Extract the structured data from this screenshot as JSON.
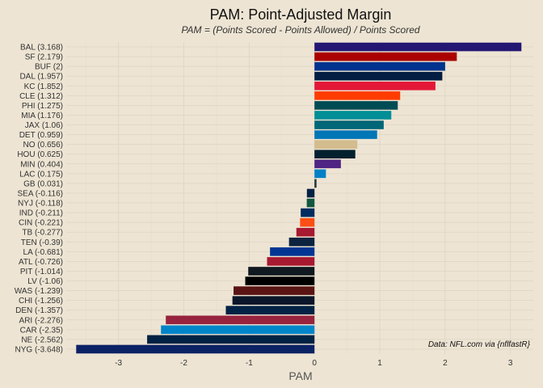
{
  "chart_data": {
    "type": "bar",
    "orientation": "horizontal",
    "title": "PAM: Point-Adjusted Margin",
    "subtitle": "PAM = (Points Scored - Points Allowed) / Points Scored",
    "xlabel": "PAM",
    "ylabel": "",
    "caption": "Data: NFL.com via {nflfastR}",
    "xlim": [
      -3.8,
      3.35
    ],
    "xticks": [
      -3,
      -2,
      -1,
      0,
      1,
      2,
      3
    ],
    "grid": true,
    "legend": "none",
    "categories": [
      "BAL (3.168)",
      "SF (2.179)",
      "BUF (2)",
      "DAL (1.957)",
      "KC (1.852)",
      "CLE (1.312)",
      "PHI (1.275)",
      "MIA (1.176)",
      "JAX (1.06)",
      "DET (0.959)",
      "NO (0.656)",
      "HOU (0.625)",
      "MIN (0.404)",
      "LAC (0.175)",
      "GB (0.031)",
      "SEA (-0.116)",
      "NYJ (-0.118)",
      "IND (-0.211)",
      "CIN (-0.221)",
      "TB (-0.277)",
      "TEN (-0.39)",
      "LA (-0.681)",
      "ATL (-0.726)",
      "PIT (-1.014)",
      "LV (-1.06)",
      "WAS (-1.239)",
      "CHI (-1.256)",
      "DEN (-1.357)",
      "ARI (-2.276)",
      "CAR (-2.35)",
      "NE (-2.562)",
      "NYG (-3.648)"
    ],
    "values": [
      3.168,
      2.179,
      2,
      1.957,
      1.852,
      1.312,
      1.275,
      1.176,
      1.06,
      0.959,
      0.656,
      0.625,
      0.404,
      0.175,
      0.031,
      -0.116,
      -0.118,
      -0.211,
      -0.221,
      -0.277,
      -0.39,
      -0.681,
      -0.726,
      -1.014,
      -1.06,
      -1.239,
      -1.256,
      -1.357,
      -2.276,
      -2.35,
      -2.562,
      -3.648
    ],
    "colors": [
      "#241773",
      "#AA0000",
      "#00338D",
      "#041E42",
      "#E31837",
      "#FF3C00",
      "#004C54",
      "#008E97",
      "#006778",
      "#0076B6",
      "#D3BC8D",
      "#03202F",
      "#4F2683",
      "#0080C6",
      "#203731",
      "#002244",
      "#125740",
      "#002C5F",
      "#FB4F14",
      "#A71930",
      "#0C2340",
      "#003594",
      "#A71930",
      "#101820",
      "#000000",
      "#5A1414",
      "#0B162A",
      "#002244",
      "#97233F",
      "#0085CA",
      "#002244",
      "#0B2265"
    ]
  }
}
